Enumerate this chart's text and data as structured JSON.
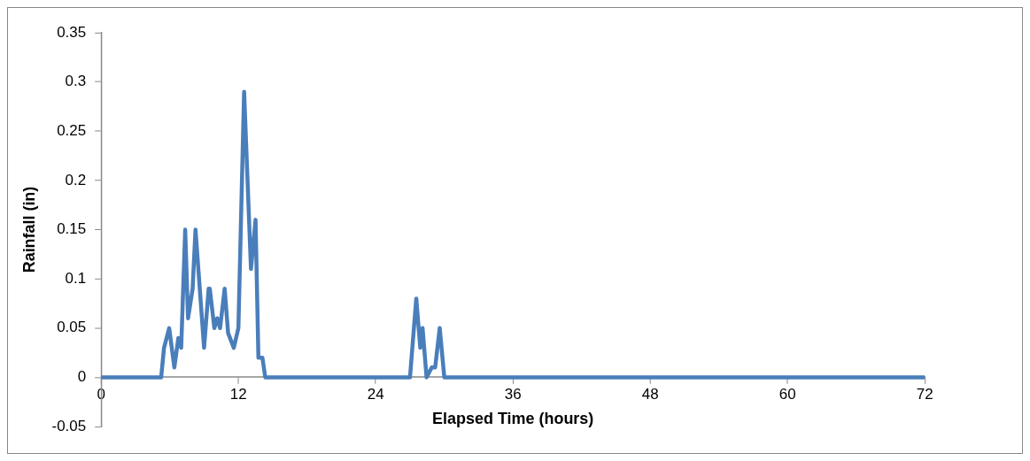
{
  "chart_data": {
    "type": "line",
    "xlabel": "Elapsed Time (hours)",
    "ylabel": "Rainfall (in)",
    "series": [
      {
        "color": "#4a7ebb",
        "x": [
          0,
          5.25,
          5.5,
          5.95,
          6.4,
          6.75,
          7.0,
          7.35,
          7.6,
          8.0,
          8.25,
          9.0,
          9.4,
          9.5,
          9.9,
          10.15,
          10.4,
          10.8,
          11.1,
          11.6,
          12.0,
          12.5,
          13.1,
          13.5,
          13.75,
          14.1,
          14.35,
          27.0,
          27.55,
          27.9,
          28.1,
          28.45,
          28.9,
          29.2,
          29.6,
          30.0,
          72
        ],
        "values": [
          0,
          0,
          0.03,
          0.05,
          0.01,
          0.04,
          0.03,
          0.15,
          0.06,
          0.09,
          0.15,
          0.03,
          0.09,
          0.09,
          0.05,
          0.06,
          0.05,
          0.09,
          0.045,
          0.03,
          0.05,
          0.29,
          0.11,
          0.16,
          0.02,
          0.02,
          0,
          0,
          0.08,
          0.03,
          0.05,
          0,
          0.01,
          0.01,
          0.05,
          0,
          0
        ]
      }
    ],
    "xlim": [
      0,
      72
    ],
    "xticks": [
      0,
      12,
      24,
      36,
      48,
      60,
      72
    ],
    "ylim": [
      -0.05,
      0.35
    ],
    "yticks": [
      -0.05,
      0,
      0.05,
      0.1,
      0.15,
      0.2,
      0.25,
      0.3,
      0.35
    ],
    "grid": false,
    "legend": false,
    "marker": "none",
    "line_style": "solid"
  }
}
